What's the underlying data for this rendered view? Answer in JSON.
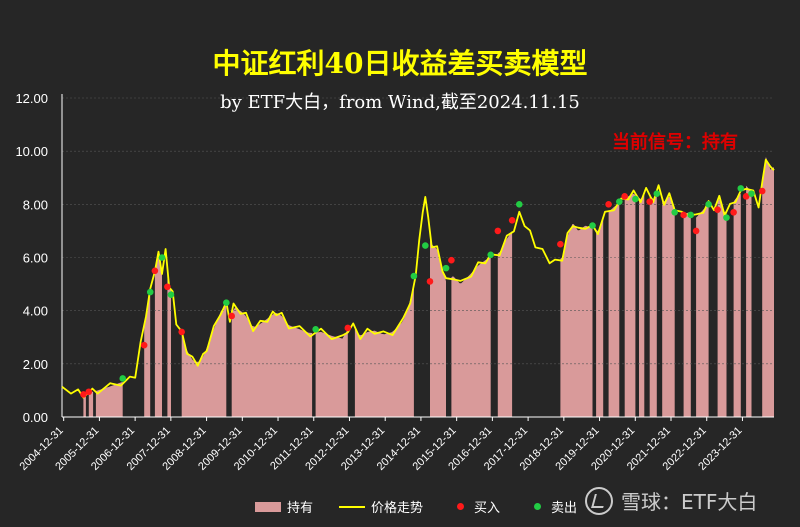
{
  "header": {
    "title": "中证红利40日收益差买卖模型",
    "subtitle": "by ETF大白，from Wind,截至2024.11.15",
    "signal": "当前信号：持有"
  },
  "legend": {
    "hold": "持有",
    "price": "价格走势",
    "buy": "买入",
    "sell": "卖出"
  },
  "watermark": {
    "text": "雪球：ETF大白"
  },
  "colors": {
    "background": "#262626",
    "hold_fill": "#d99a9a",
    "price_line": "#ffff00",
    "buy": "#ff1a1a",
    "sell": "#22cc44",
    "signal": "#dd0000"
  },
  "chart_data": {
    "type": "area",
    "title": "中证红利40日收益差买卖模型",
    "ylim": [
      0,
      12
    ],
    "yticks": [
      "0.00",
      "2.00",
      "4.00",
      "6.00",
      "8.00",
      "10.00",
      "12.00"
    ],
    "xticks": [
      "2004-12-31",
      "2005-12-31",
      "2006-12-31",
      "2007-12-31",
      "2008-12-31",
      "2009-12-31",
      "2010-12-31",
      "2011-12-31",
      "2012-12-31",
      "2013-12-31",
      "2014-12-31",
      "2015-12-31",
      "2016-12-31",
      "2017-12-31",
      "2018-12-31",
      "2019-12-31",
      "2020-12-31",
      "2021-12-31",
      "2022-12-31",
      "2023-12-31"
    ],
    "xlim": [
      2004.95,
      2024.88
    ],
    "series": [
      {
        "name": "价格走势",
        "type": "line",
        "points": [
          [
            2004.95,
            1.02
          ],
          [
            2005.2,
            1.0
          ],
          [
            2005.4,
            0.92
          ],
          [
            2005.55,
            0.85
          ],
          [
            2005.8,
            0.95
          ],
          [
            2005.95,
            1.0
          ],
          [
            2006.3,
            1.15
          ],
          [
            2006.6,
            1.3
          ],
          [
            2006.85,
            1.4
          ],
          [
            2007.0,
            1.6
          ],
          [
            2007.15,
            2.7
          ],
          [
            2007.3,
            3.9
          ],
          [
            2007.42,
            4.7
          ],
          [
            2007.55,
            5.6
          ],
          [
            2007.65,
            6.1
          ],
          [
            2007.75,
            5.5
          ],
          [
            2007.85,
            6.2
          ],
          [
            2007.95,
            5.0
          ],
          [
            2008.05,
            4.6
          ],
          [
            2008.15,
            3.6
          ],
          [
            2008.3,
            3.1
          ],
          [
            2008.45,
            2.5
          ],
          [
            2008.6,
            2.15
          ],
          [
            2008.75,
            2.05
          ],
          [
            2008.9,
            2.25
          ],
          [
            2009.0,
            2.6
          ],
          [
            2009.2,
            3.3
          ],
          [
            2009.4,
            4.0
          ],
          [
            2009.55,
            4.2
          ],
          [
            2009.65,
            3.7
          ],
          [
            2009.75,
            4.15
          ],
          [
            2009.95,
            4.0
          ],
          [
            2010.1,
            3.8
          ],
          [
            2010.3,
            3.35
          ],
          [
            2010.5,
            3.5
          ],
          [
            2010.7,
            3.7
          ],
          [
            2010.85,
            3.85
          ],
          [
            2010.95,
            3.95
          ],
          [
            2011.1,
            3.8
          ],
          [
            2011.3,
            3.45
          ],
          [
            2011.6,
            3.3
          ],
          [
            2011.9,
            3.15
          ],
          [
            2012.2,
            3.2
          ],
          [
            2012.5,
            3.05
          ],
          [
            2012.8,
            2.95
          ],
          [
            2012.95,
            3.3
          ],
          [
            2013.1,
            3.4
          ],
          [
            2013.3,
            3.05
          ],
          [
            2013.5,
            3.2
          ],
          [
            2013.7,
            3.25
          ],
          [
            2013.95,
            3.1
          ],
          [
            2014.2,
            3.2
          ],
          [
            2014.5,
            3.6
          ],
          [
            2014.7,
            4.4
          ],
          [
            2014.85,
            5.2
          ],
          [
            2014.95,
            6.8
          ],
          [
            2015.05,
            7.6
          ],
          [
            2015.12,
            8.4
          ],
          [
            2015.2,
            7.4
          ],
          [
            2015.3,
            6.5
          ],
          [
            2015.45,
            6.3
          ],
          [
            2015.6,
            5.6
          ],
          [
            2015.7,
            5.1
          ],
          [
            2015.9,
            5.3
          ],
          [
            2016.1,
            5.0
          ],
          [
            2016.4,
            5.4
          ],
          [
            2016.6,
            5.7
          ],
          [
            2016.8,
            5.9
          ],
          [
            2016.95,
            6.0
          ],
          [
            2017.2,
            6.2
          ],
          [
            2017.4,
            6.7
          ],
          [
            2017.6,
            7.1
          ],
          [
            2017.75,
            7.6
          ],
          [
            2017.9,
            7.3
          ],
          [
            2018.05,
            6.9
          ],
          [
            2018.2,
            6.5
          ],
          [
            2018.4,
            6.2
          ],
          [
            2018.6,
            5.9
          ],
          [
            2018.75,
            5.8
          ],
          [
            2018.95,
            6.0
          ],
          [
            2019.1,
            6.8
          ],
          [
            2019.25,
            7.3
          ],
          [
            2019.4,
            7.0
          ],
          [
            2019.6,
            7.2
          ],
          [
            2019.8,
            7.1
          ],
          [
            2019.95,
            7.0
          ],
          [
            2020.15,
            7.6
          ],
          [
            2020.4,
            7.9
          ],
          [
            2020.6,
            8.1
          ],
          [
            2020.8,
            8.3
          ],
          [
            2020.95,
            8.4
          ],
          [
            2021.15,
            8.2
          ],
          [
            2021.3,
            8.5
          ],
          [
            2021.5,
            8.2
          ],
          [
            2021.65,
            8.6
          ],
          [
            2021.8,
            8.1
          ],
          [
            2021.95,
            8.3
          ],
          [
            2022.1,
            7.9
          ],
          [
            2022.3,
            7.6
          ],
          [
            2022.5,
            7.7
          ],
          [
            2022.7,
            7.5
          ],
          [
            2022.9,
            7.8
          ],
          [
            2023.05,
            8.0
          ],
          [
            2023.2,
            7.9
          ],
          [
            2023.35,
            8.2
          ],
          [
            2023.5,
            7.7
          ],
          [
            2023.65,
            7.9
          ],
          [
            2023.8,
            8.2
          ],
          [
            2023.95,
            8.4
          ],
          [
            2024.1,
            8.7
          ],
          [
            2024.3,
            8.4
          ],
          [
            2024.45,
            8.0
          ],
          [
            2024.55,
            8.7
          ],
          [
            2024.65,
            9.8
          ],
          [
            2024.78,
            9.3
          ],
          [
            2024.88,
            9.4
          ]
        ]
      },
      {
        "name": "持有",
        "type": "band",
        "intervals": [
          [
            2005.55,
            2005.62
          ],
          [
            2005.7,
            2005.82
          ],
          [
            2005.9,
            2006.65
          ],
          [
            2007.25,
            2007.42
          ],
          [
            2007.55,
            2007.75
          ],
          [
            2007.9,
            2008.0
          ],
          [
            2008.3,
            2009.55
          ],
          [
            2009.7,
            2011.95
          ],
          [
            2012.05,
            2012.95
          ],
          [
            2013.15,
            2014.8
          ],
          [
            2015.25,
            2015.7
          ],
          [
            2015.85,
            2016.95
          ],
          [
            2017.15,
            2017.55
          ],
          [
            2018.9,
            2019.8
          ],
          [
            2019.9,
            2020.1
          ],
          [
            2020.25,
            2020.55
          ],
          [
            2020.7,
            2021.0
          ],
          [
            2021.1,
            2021.25
          ],
          [
            2021.4,
            2021.6
          ],
          [
            2021.75,
            2022.1
          ],
          [
            2022.35,
            2022.55
          ],
          [
            2022.7,
            2023.05
          ],
          [
            2023.3,
            2023.55
          ],
          [
            2023.75,
            2023.95
          ],
          [
            2024.1,
            2024.25
          ],
          [
            2024.55,
            2024.88
          ]
        ]
      },
      {
        "name": "买入",
        "type": "scatter",
        "points": [
          [
            2005.55,
            0.85
          ],
          [
            2005.7,
            0.95
          ],
          [
            2007.25,
            2.7
          ],
          [
            2007.55,
            5.5
          ],
          [
            2007.9,
            4.9
          ],
          [
            2008.3,
            3.2
          ],
          [
            2009.7,
            3.8
          ],
          [
            2012.95,
            3.35
          ],
          [
            2015.25,
            5.1
          ],
          [
            2015.85,
            5.9
          ],
          [
            2017.15,
            7.0
          ],
          [
            2017.55,
            7.4
          ],
          [
            2018.9,
            6.5
          ],
          [
            2020.25,
            8.0
          ],
          [
            2020.7,
            8.3
          ],
          [
            2021.4,
            8.1
          ],
          [
            2022.35,
            7.6
          ],
          [
            2022.7,
            7.0
          ],
          [
            2023.3,
            7.8
          ],
          [
            2023.75,
            7.7
          ],
          [
            2024.1,
            8.3
          ],
          [
            2024.55,
            8.5
          ]
        ]
      },
      {
        "name": "卖出",
        "type": "scatter",
        "points": [
          [
            2006.65,
            1.45
          ],
          [
            2007.42,
            4.7
          ],
          [
            2007.75,
            6.0
          ],
          [
            2008.0,
            4.6
          ],
          [
            2009.55,
            4.3
          ],
          [
            2012.05,
            3.3
          ],
          [
            2014.8,
            5.3
          ],
          [
            2015.12,
            6.45
          ],
          [
            2015.7,
            5.6
          ],
          [
            2016.95,
            6.1
          ],
          [
            2017.75,
            8.0
          ],
          [
            2019.8,
            7.2
          ],
          [
            2020.55,
            8.1
          ],
          [
            2021.0,
            8.2
          ],
          [
            2021.6,
            8.4
          ],
          [
            2022.1,
            7.7
          ],
          [
            2022.55,
            7.6
          ],
          [
            2023.05,
            8.0
          ],
          [
            2023.55,
            7.5
          ],
          [
            2023.95,
            8.6
          ],
          [
            2024.25,
            8.4
          ]
        ]
      }
    ]
  }
}
